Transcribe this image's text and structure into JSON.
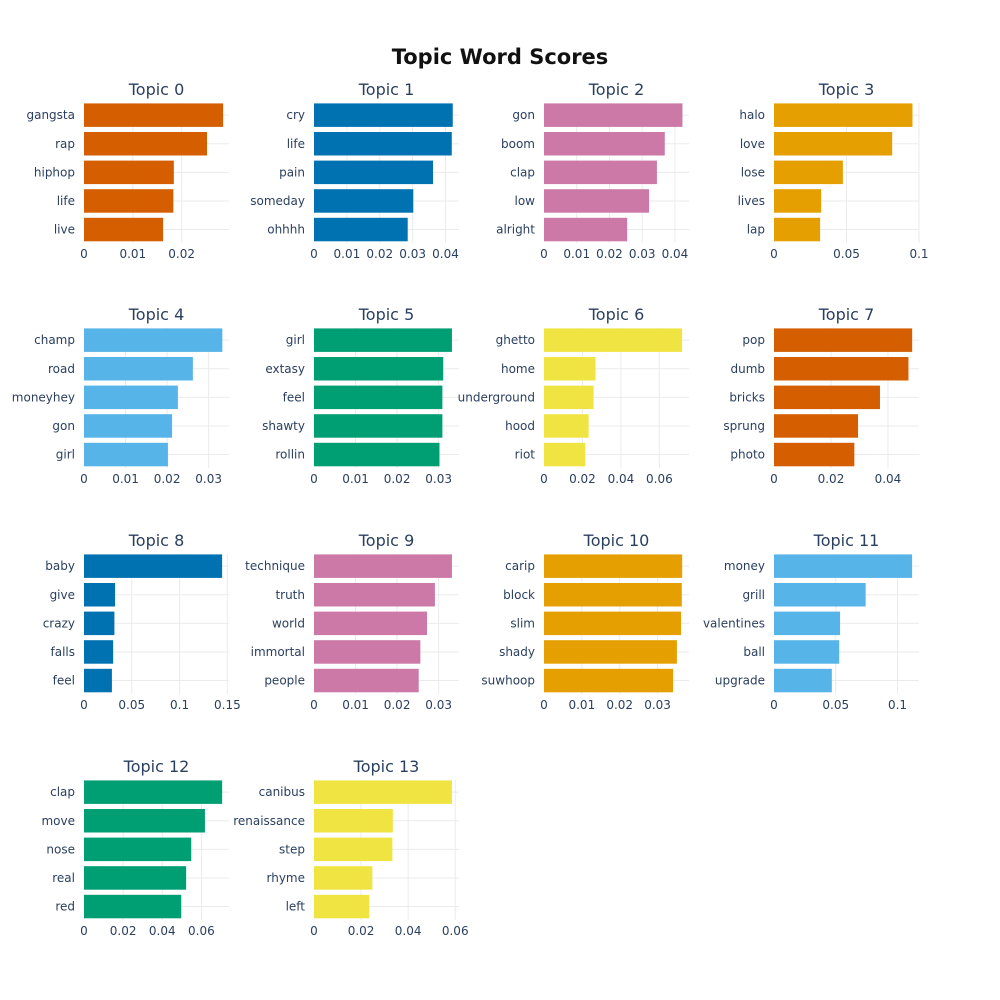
{
  "title": "Topic Word Scores",
  "colors": [
    "#D55E00",
    "#0072B2",
    "#CC79A7",
    "#E69F00",
    "#56B4E9",
    "#009E73",
    "#F0E442"
  ],
  "chart_data": [
    {
      "type": "bar",
      "orientation": "horizontal",
      "title": "Topic 0",
      "color": "#D55E00",
      "categories": [
        "gangsta",
        "rap",
        "hiphop",
        "life",
        "live"
      ],
      "values": [
        0.0285,
        0.0252,
        0.0184,
        0.0183,
        0.0162
      ],
      "ticks": [
        0,
        0.01,
        0.02
      ],
      "tick_labels": [
        "0",
        "0.01",
        "0.02"
      ],
      "xlim": [
        0,
        0.0297
      ]
    },
    {
      "type": "bar",
      "orientation": "horizontal",
      "title": "Topic 1",
      "color": "#0072B2",
      "categories": [
        "cry",
        "life",
        "pain",
        "someday",
        "ohhhh"
      ],
      "values": [
        0.0422,
        0.0419,
        0.0362,
        0.0302,
        0.0285
      ],
      "ticks": [
        0,
        0.01,
        0.02,
        0.03,
        0.04
      ],
      "tick_labels": [
        "0",
        "0.01",
        "0.02",
        "0.03",
        "0.04"
      ],
      "xlim": [
        0,
        0.0441
      ]
    },
    {
      "type": "bar",
      "orientation": "horizontal",
      "title": "Topic 2",
      "color": "#CC79A7",
      "categories": [
        "gon",
        "boom",
        "clap",
        "low",
        "alright"
      ],
      "values": [
        0.0423,
        0.0369,
        0.0345,
        0.0321,
        0.0254
      ],
      "ticks": [
        0,
        0.01,
        0.02,
        0.03,
        0.04
      ],
      "tick_labels": [
        "0",
        "0.01",
        "0.02",
        "0.03",
        "0.04"
      ],
      "xlim": [
        0,
        0.0443
      ]
    },
    {
      "type": "bar",
      "orientation": "horizontal",
      "title": "Topic 3",
      "color": "#E69F00",
      "categories": [
        "halo",
        "love",
        "lose",
        "lives",
        "lap"
      ],
      "values": [
        0.0955,
        0.0815,
        0.0475,
        0.0325,
        0.0318
      ],
      "ticks": [
        0,
        0.05,
        0.1
      ],
      "tick_labels": [
        "0",
        "0.05",
        "0.1"
      ],
      "xlim": [
        0,
        0.1
      ]
    },
    {
      "type": "bar",
      "orientation": "horizontal",
      "title": "Topic 4",
      "color": "#56B4E9",
      "categories": [
        "champ",
        "road",
        "moneyhey",
        "gon",
        "girl"
      ],
      "values": [
        0.0333,
        0.0262,
        0.0226,
        0.0212,
        0.0202
      ],
      "ticks": [
        0,
        0.01,
        0.02,
        0.03
      ],
      "tick_labels": [
        "0",
        "0.01",
        "0.02",
        "0.03"
      ],
      "xlim": [
        0,
        0.0349
      ]
    },
    {
      "type": "bar",
      "orientation": "horizontal",
      "title": "Topic 5",
      "color": "#009E73",
      "categories": [
        "girl",
        "extasy",
        "feel",
        "shawty",
        "rollin"
      ],
      "values": [
        0.0332,
        0.0311,
        0.0309,
        0.0309,
        0.0302
      ],
      "ticks": [
        0,
        0.01,
        0.02,
        0.03
      ],
      "tick_labels": [
        "0",
        "0.01",
        "0.02",
        "0.03"
      ],
      "xlim": [
        0,
        0.0349
      ]
    },
    {
      "type": "bar",
      "orientation": "horizontal",
      "title": "Topic 6",
      "color": "#F0E442",
      "categories": [
        "ghetto",
        "home",
        "underground",
        "hood",
        "riot"
      ],
      "values": [
        0.0718,
        0.0268,
        0.0258,
        0.0232,
        0.0215
      ],
      "ticks": [
        0,
        0.02,
        0.04,
        0.06
      ],
      "tick_labels": [
        "0",
        "0.02",
        "0.04",
        "0.06"
      ],
      "xlim": [
        0,
        0.0754
      ]
    },
    {
      "type": "bar",
      "orientation": "horizontal",
      "title": "Topic 7",
      "color": "#D55E00",
      "categories": [
        "pop",
        "dumb",
        "bricks",
        "sprung",
        "photo"
      ],
      "values": [
        0.0485,
        0.0472,
        0.0372,
        0.0295,
        0.0282
      ],
      "ticks": [
        0,
        0.02,
        0.04
      ],
      "tick_labels": [
        "0",
        "0.02",
        "0.04"
      ],
      "xlim": [
        0,
        0.0509
      ]
    },
    {
      "type": "bar",
      "orientation": "horizontal",
      "title": "Topic 8",
      "color": "#0072B2",
      "categories": [
        "baby",
        "give",
        "crazy",
        "falls",
        "feel"
      ],
      "values": [
        0.1445,
        0.0325,
        0.0318,
        0.0305,
        0.0292
      ],
      "ticks": [
        0,
        0.05,
        0.1,
        0.15
      ],
      "tick_labels": [
        "0",
        "0.05",
        "0.1",
        "0.15"
      ],
      "xlim": [
        0,
        0.1517
      ]
    },
    {
      "type": "bar",
      "orientation": "horizontal",
      "title": "Topic 9",
      "color": "#CC79A7",
      "categories": [
        "technique",
        "truth",
        "world",
        "immortal",
        "people"
      ],
      "values": [
        0.0332,
        0.0291,
        0.0272,
        0.0256,
        0.0252
      ],
      "ticks": [
        0,
        0.01,
        0.02,
        0.03
      ],
      "tick_labels": [
        "0",
        "0.01",
        "0.02",
        "0.03"
      ],
      "xlim": [
        0,
        0.0349
      ]
    },
    {
      "type": "bar",
      "orientation": "horizontal",
      "title": "Topic 10",
      "color": "#E69F00",
      "categories": [
        "carip",
        "block",
        "slim",
        "shady",
        "suwhoop"
      ],
      "values": [
        0.0365,
        0.0364,
        0.0362,
        0.0351,
        0.0341
      ],
      "ticks": [
        0,
        0.01,
        0.02,
        0.03
      ],
      "tick_labels": [
        "0",
        "0.01",
        "0.02",
        "0.03"
      ],
      "xlim": [
        0,
        0.0383
      ]
    },
    {
      "type": "bar",
      "orientation": "horizontal",
      "title": "Topic 11",
      "color": "#56B4E9",
      "categories": [
        "money",
        "grill",
        "valentines",
        "ball",
        "upgrade"
      ],
      "values": [
        0.1118,
        0.0742,
        0.0535,
        0.0528,
        0.0468
      ],
      "ticks": [
        0,
        0.05,
        0.1
      ],
      "tick_labels": [
        "0",
        "0.05",
        "0.1"
      ],
      "xlim": [
        0,
        0.1174
      ]
    },
    {
      "type": "bar",
      "orientation": "horizontal",
      "title": "Topic 12",
      "color": "#009E73",
      "categories": [
        "clap",
        "move",
        "nose",
        "real",
        "red"
      ],
      "values": [
        0.0706,
        0.0618,
        0.0548,
        0.0522,
        0.0497
      ],
      "ticks": [
        0,
        0.02,
        0.04,
        0.06
      ],
      "tick_labels": [
        "0",
        "0.02",
        "0.04",
        "0.06"
      ],
      "xlim": [
        0,
        0.0741
      ]
    },
    {
      "type": "bar",
      "orientation": "horizontal",
      "title": "Topic 13",
      "color": "#F0E442",
      "categories": [
        "canibus",
        "renaissance",
        "step",
        "rhyme",
        "left"
      ],
      "values": [
        0.0586,
        0.0335,
        0.0333,
        0.0248,
        0.0235
      ],
      "ticks": [
        0,
        0.02,
        0.04,
        0.06
      ],
      "tick_labels": [
        "0",
        "0.02",
        "0.04",
        "0.06"
      ],
      "xlim": [
        0,
        0.0616
      ]
    }
  ]
}
